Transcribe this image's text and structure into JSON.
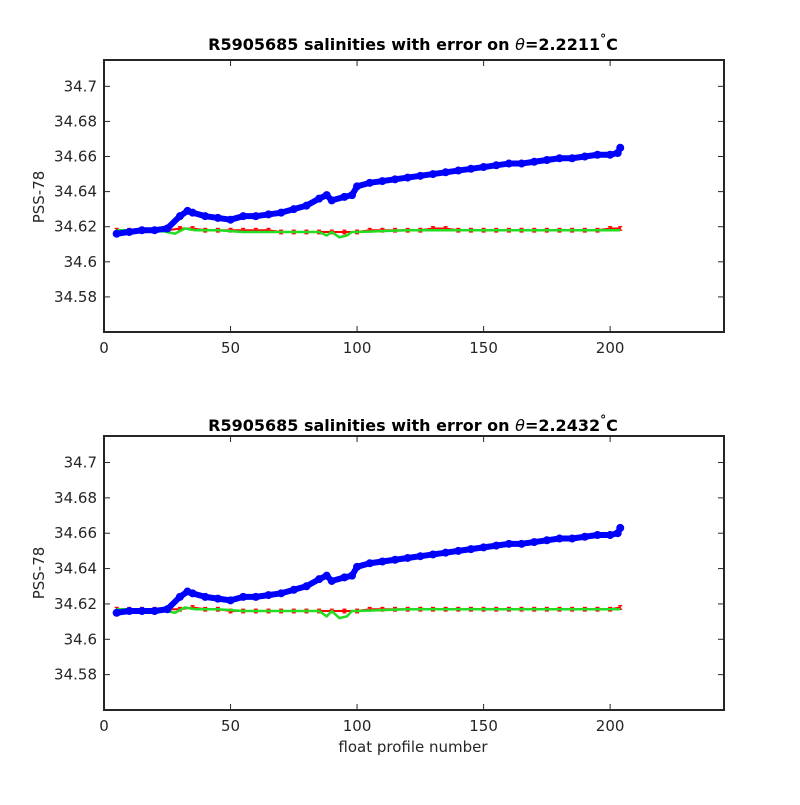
{
  "figure": {
    "xlabel": "float profile number",
    "colors": {
      "raw": "#0000ff",
      "calibrated": "#ff0000",
      "fit": "#22dd22",
      "axis": "#262626"
    }
  },
  "chart_data": [
    {
      "type": "scatter",
      "title_prefix": "R5905685 salinities with error on ",
      "title_theta": "θ",
      "title_value": "=2.2211",
      "title_degree": "°",
      "title_unit": "C",
      "ylabel": "PSS-78",
      "xlabel": "",
      "xlim": [
        0,
        245
      ],
      "ylim": [
        34.56,
        34.715
      ],
      "xticks": [
        0,
        50,
        100,
        150,
        200
      ],
      "yticks": [
        34.58,
        34.6,
        34.62,
        34.64,
        34.66,
        34.68,
        34.7
      ],
      "ytick_labels": [
        "34.58",
        "34.6",
        "34.62",
        "34.64",
        "34.66",
        "34.68",
        "34.7"
      ],
      "grid": false,
      "series": [
        {
          "role": "raw",
          "color": "#0000ff",
          "marker": "filled-circle",
          "x": [
            5,
            10,
            15,
            20,
            25,
            30,
            33,
            35,
            40,
            45,
            50,
            55,
            60,
            65,
            70,
            75,
            80,
            85,
            88,
            90,
            95,
            98,
            100,
            105,
            110,
            115,
            120,
            125,
            130,
            135,
            140,
            145,
            150,
            155,
            160,
            165,
            170,
            175,
            180,
            185,
            190,
            195,
            200,
            203,
            204
          ],
          "y": [
            34.616,
            34.617,
            34.618,
            34.618,
            34.619,
            34.626,
            34.629,
            34.628,
            34.626,
            34.625,
            34.624,
            34.626,
            34.626,
            34.627,
            34.628,
            34.63,
            34.632,
            34.636,
            34.638,
            34.635,
            34.637,
            34.638,
            34.643,
            34.645,
            34.646,
            34.647,
            34.648,
            34.649,
            34.65,
            34.651,
            34.652,
            34.653,
            34.654,
            34.655,
            34.656,
            34.656,
            34.657,
            34.658,
            34.659,
            34.659,
            34.66,
            34.661,
            34.661,
            34.662,
            34.665
          ]
        },
        {
          "role": "calibrated",
          "color": "#ff0000",
          "marker": "errorbar",
          "y_err": 0.001,
          "x": [
            5,
            10,
            15,
            20,
            25,
            30,
            35,
            40,
            45,
            50,
            55,
            60,
            65,
            70,
            75,
            80,
            85,
            90,
            95,
            100,
            105,
            110,
            115,
            120,
            125,
            130,
            135,
            140,
            145,
            150,
            155,
            160,
            165,
            170,
            175,
            180,
            185,
            190,
            195,
            200,
            204
          ],
          "y": [
            34.618,
            34.618,
            34.618,
            34.618,
            34.618,
            34.619,
            34.619,
            34.618,
            34.618,
            34.618,
            34.618,
            34.618,
            34.618,
            34.617,
            34.617,
            34.617,
            34.617,
            34.617,
            34.617,
            34.617,
            34.618,
            34.618,
            34.618,
            34.618,
            34.618,
            34.619,
            34.619,
            34.618,
            34.618,
            34.618,
            34.618,
            34.618,
            34.618,
            34.618,
            34.618,
            34.618,
            34.618,
            34.618,
            34.618,
            34.619,
            34.619
          ]
        },
        {
          "role": "fit",
          "color": "#22dd22",
          "marker": "line",
          "x": [
            5,
            20,
            25,
            28,
            32,
            36,
            45,
            55,
            70,
            80,
            85,
            88,
            90,
            93,
            96,
            98,
            100,
            120,
            140,
            160,
            180,
            200,
            204
          ],
          "y": [
            34.618,
            34.618,
            34.617,
            34.616,
            34.619,
            34.618,
            34.618,
            34.617,
            34.617,
            34.617,
            34.617,
            34.615,
            34.617,
            34.614,
            34.615,
            34.617,
            34.617,
            34.618,
            34.618,
            34.618,
            34.618,
            34.618,
            34.618
          ]
        }
      ]
    },
    {
      "type": "scatter",
      "title_prefix": "R5905685 salinities with error on ",
      "title_theta": "θ",
      "title_value": "=2.2432",
      "title_degree": "°",
      "title_unit": "C",
      "ylabel": "PSS-78",
      "xlabel": "float profile number",
      "xlim": [
        0,
        245
      ],
      "ylim": [
        34.56,
        34.715
      ],
      "xticks": [
        0,
        50,
        100,
        150,
        200
      ],
      "yticks": [
        34.58,
        34.6,
        34.62,
        34.64,
        34.66,
        34.68,
        34.7
      ],
      "ytick_labels": [
        "34.58",
        "34.6",
        "34.62",
        "34.64",
        "34.66",
        "34.68",
        "34.7"
      ],
      "grid": false,
      "series": [
        {
          "role": "raw",
          "color": "#0000ff",
          "marker": "filled-circle",
          "x": [
            5,
            10,
            15,
            20,
            25,
            30,
            33,
            35,
            40,
            45,
            50,
            55,
            60,
            65,
            70,
            75,
            80,
            85,
            88,
            90,
            95,
            98,
            100,
            105,
            110,
            115,
            120,
            125,
            130,
            135,
            140,
            145,
            150,
            155,
            160,
            165,
            170,
            175,
            180,
            185,
            190,
            195,
            200,
            203,
            204
          ],
          "y": [
            34.615,
            34.616,
            34.616,
            34.616,
            34.617,
            34.624,
            34.627,
            34.626,
            34.624,
            34.623,
            34.622,
            34.624,
            34.624,
            34.625,
            34.626,
            34.628,
            34.63,
            34.634,
            34.636,
            34.633,
            34.635,
            34.636,
            34.641,
            34.643,
            34.644,
            34.645,
            34.646,
            34.647,
            34.648,
            34.649,
            34.65,
            34.651,
            34.652,
            34.653,
            34.654,
            34.654,
            34.655,
            34.656,
            34.657,
            34.657,
            34.658,
            34.659,
            34.659,
            34.66,
            34.663
          ]
        },
        {
          "role": "calibrated",
          "color": "#ff0000",
          "marker": "errorbar",
          "y_err": 0.001,
          "x": [
            5,
            10,
            15,
            20,
            25,
            30,
            35,
            40,
            45,
            50,
            55,
            60,
            65,
            70,
            75,
            80,
            85,
            90,
            95,
            100,
            105,
            110,
            115,
            120,
            125,
            130,
            135,
            140,
            145,
            150,
            155,
            160,
            165,
            170,
            175,
            180,
            185,
            190,
            195,
            200,
            204
          ],
          "y": [
            34.617,
            34.617,
            34.617,
            34.617,
            34.617,
            34.617,
            34.618,
            34.617,
            34.617,
            34.616,
            34.616,
            34.616,
            34.616,
            34.616,
            34.616,
            34.616,
            34.616,
            34.616,
            34.616,
            34.616,
            34.617,
            34.617,
            34.617,
            34.617,
            34.617,
            34.617,
            34.617,
            34.617,
            34.617,
            34.617,
            34.617,
            34.617,
            34.617,
            34.617,
            34.617,
            34.617,
            34.617,
            34.617,
            34.617,
            34.617,
            34.618
          ]
        },
        {
          "role": "fit",
          "color": "#22dd22",
          "marker": "line",
          "x": [
            5,
            20,
            25,
            28,
            32,
            36,
            45,
            55,
            70,
            80,
            85,
            88,
            90,
            93,
            96,
            98,
            100,
            120,
            140,
            160,
            180,
            200,
            204
          ],
          "y": [
            34.617,
            34.617,
            34.616,
            34.615,
            34.618,
            34.617,
            34.617,
            34.616,
            34.616,
            34.616,
            34.616,
            34.613,
            34.616,
            34.612,
            34.613,
            34.616,
            34.616,
            34.617,
            34.617,
            34.617,
            34.617,
            34.617,
            34.617
          ]
        }
      ]
    }
  ]
}
